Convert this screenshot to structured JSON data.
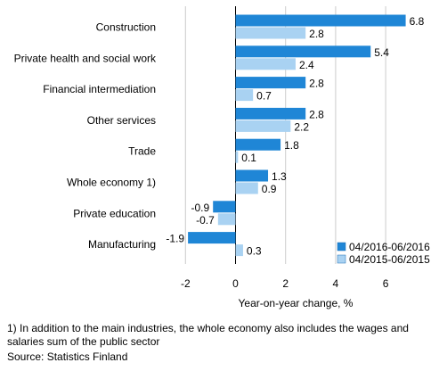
{
  "chart_data": {
    "type": "bar",
    "orientation": "horizontal",
    "categories": [
      "Construction",
      "Private health and social work",
      "Financial intermediation",
      "Other services",
      "Trade",
      "Whole economy 1)",
      "Private education",
      "Manufacturing"
    ],
    "series": [
      {
        "name": "04/2016-06/2016",
        "color": "#1f86d6",
        "values": [
          6.8,
          5.4,
          2.8,
          2.8,
          1.8,
          1.3,
          -0.9,
          -1.9
        ],
        "labels": [
          "6.8",
          "5.4",
          "2.8",
          "2.8",
          "1.8",
          "1.3",
          "-0.9",
          "-1.9"
        ]
      },
      {
        "name": "04/2015-06/2015",
        "color": "#a9d2f2",
        "values": [
          2.8,
          2.4,
          0.7,
          2.2,
          0.1,
          0.9,
          -0.7,
          0.3
        ],
        "labels": [
          "2.8",
          "2.4",
          "0.7",
          "2.2",
          "0.1",
          "0.9",
          "-0.7",
          "0.3"
        ]
      }
    ],
    "xlabel": "Year-on-year change, %",
    "xlim": [
      -3,
      7.5
    ],
    "xticks": [
      -2,
      0,
      2,
      4,
      6
    ],
    "xtick_labels": [
      "-2",
      "0",
      "2",
      "4",
      "6"
    ],
    "grid": true,
    "legend_position": "bottom-right"
  },
  "footnote": "1) In addition to the main industries, the whole economy also includes the wages and salaries sum of the public sector",
  "source": "Source: Statistics Finland"
}
